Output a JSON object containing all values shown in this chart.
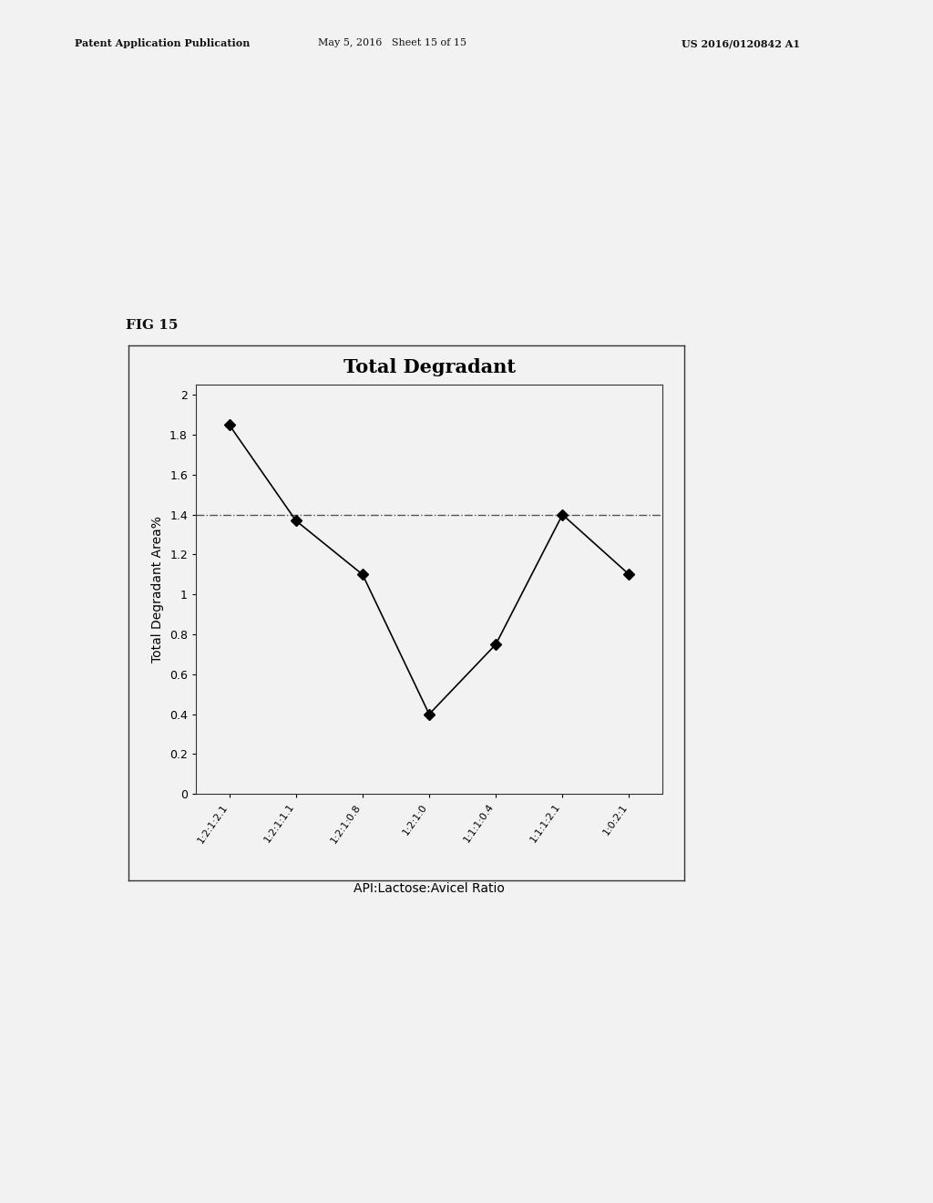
{
  "title": "Total Degradant",
  "ylabel": "Total Degradant Area%",
  "xlabel": "API:Lactose:Avicel Ratio",
  "x_labels": [
    "1:2:1:2.1",
    "1:2:1:1.1",
    "1:2:1:0.8",
    "1:2:1:0",
    "1:1:1:0.4",
    "1:1:1:2.1",
    "1:0:2:1"
  ],
  "y_values": [
    1.85,
    1.37,
    1.1,
    0.4,
    0.75,
    1.4,
    1.1
  ],
  "ref_line_y": 1.4,
  "ylim": [
    0,
    2.05
  ],
  "yticks": [
    0,
    0.2,
    0.4,
    0.6,
    0.8,
    1.0,
    1.2,
    1.4,
    1.6,
    1.8,
    2
  ],
  "ytick_labels": [
    "0",
    "0.2",
    "0.4",
    "0.6",
    "0.8",
    "1",
    "1.2",
    "1.4",
    "1.6",
    "1.8",
    "2"
  ],
  "background_color": "#f0f0f0",
  "line_color": "#000000",
  "marker": "D",
  "marker_size": 6,
  "ref_line_color": "#555555",
  "header_left": "Patent Application Publication",
  "header_mid": "May 5, 2016   Sheet 15 of 15",
  "header_right": "US 2016/0120842 A1",
  "fig_label": "FIG 15",
  "title_fontsize": 15,
  "axis_label_fontsize": 10,
  "tick_fontsize": 9,
  "header_fontsize": 8
}
